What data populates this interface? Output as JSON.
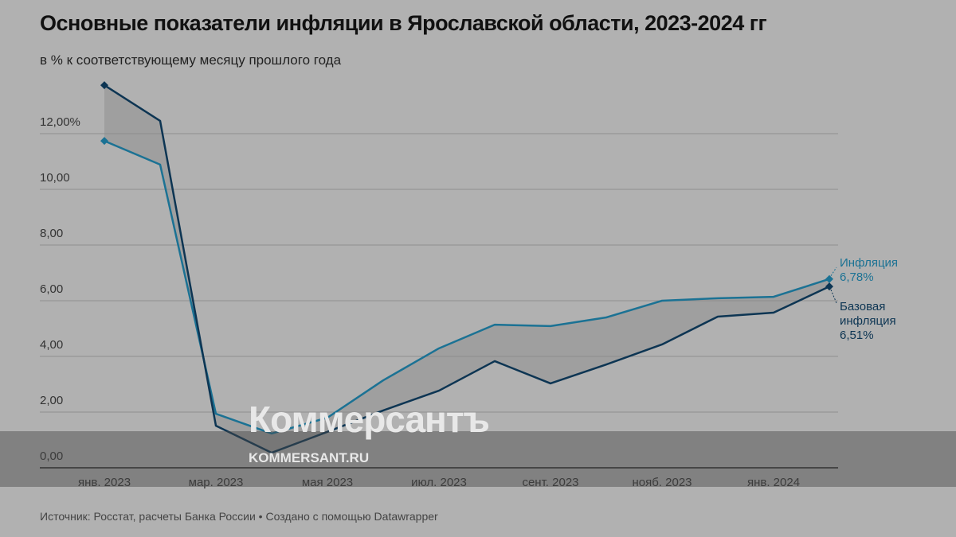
{
  "chart_data": {
    "type": "line",
    "title": "Основные показатели инфляции в Ярославской области, 2023-2024 гг",
    "subtitle": "в % к соответствующему месяцу прошлого года",
    "source": "Источник: Росстат, расчеты Банка России • Создано с помощью Datawrapper",
    "categories": [
      "янв. 2023",
      null,
      "мар. 2023",
      null,
      "мая 2023",
      null,
      "июл. 2023",
      null,
      "сент. 2023",
      null,
      "нояб. 2023",
      null,
      "янв. 2024",
      null
    ],
    "series": [
      {
        "name": "Инфляция",
        "color": "#1b7294",
        "values": [
          11.74,
          10.89,
          1.94,
          1.23,
          1.8,
          3.14,
          4.29,
          5.14,
          5.09,
          5.4,
          6.0,
          6.09,
          6.14,
          6.78
        ],
        "value_labels": [
          null,
          null,
          null,
          null,
          null,
          null,
          null,
          null,
          null,
          null,
          null,
          null,
          null,
          "6,78%"
        ]
      },
      {
        "name": "Базовая инфляция",
        "color": "#0d3553",
        "values": [
          13.74,
          12.46,
          1.51,
          0.54,
          1.29,
          2.06,
          2.77,
          3.83,
          3.03,
          3.71,
          4.43,
          5.43,
          5.57,
          6.51
        ],
        "value_labels": [
          null,
          null,
          null,
          null,
          null,
          null,
          null,
          null,
          null,
          null,
          null,
          null,
          null,
          "6,51%"
        ]
      }
    ],
    "ylim": [
      0,
      14
    ],
    "yticks": [
      {
        "value": 0,
        "label": "0,00"
      },
      {
        "value": 2,
        "label": "2,00"
      },
      {
        "value": 4,
        "label": "4,00"
      },
      {
        "value": 6,
        "label": "6,00"
      },
      {
        "value": 8,
        "label": "8,00"
      },
      {
        "value": 10,
        "label": "10,00"
      },
      {
        "value": 12,
        "label": "12,00%"
      }
    ],
    "grid": true,
    "watermark": {
      "logo": "Коммерсантъ",
      "url": "KOMMERSANT.RU"
    }
  }
}
